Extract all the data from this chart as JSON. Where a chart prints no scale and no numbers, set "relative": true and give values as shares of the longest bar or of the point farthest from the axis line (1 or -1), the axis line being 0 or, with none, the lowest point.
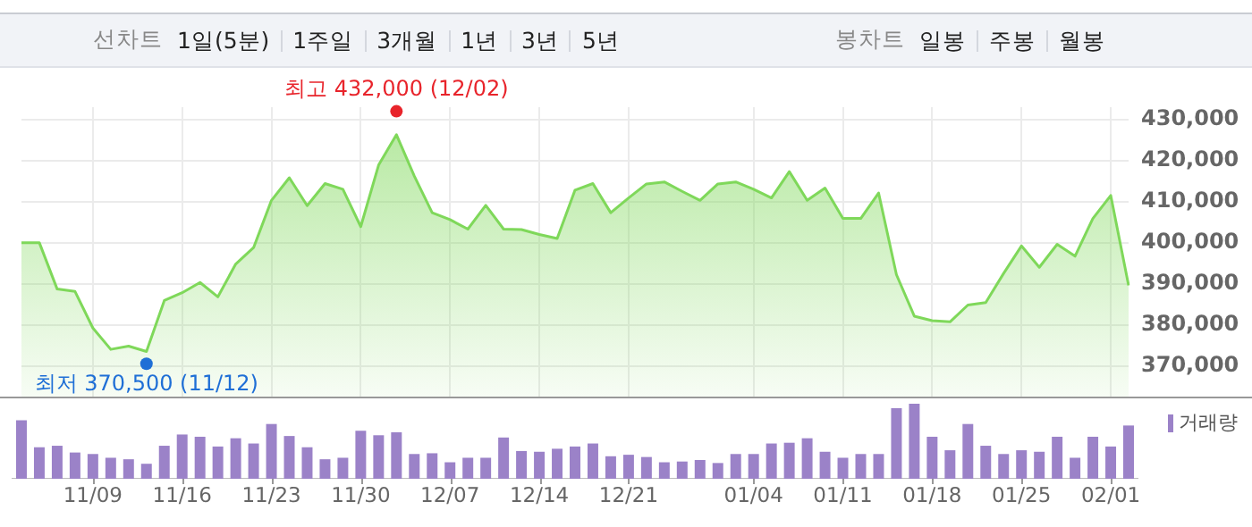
{
  "chart_data": [
    {
      "type": "other",
      "title": "선차트",
      "annotations": [
        "1일(5분)",
        "1주일",
        "3개월",
        "1년",
        "3년",
        "5년"
      ]
    },
    {
      "type": "other",
      "title": "봉차트",
      "annotations": [
        "일봉",
        "주봉",
        "월봉"
      ]
    },
    {
      "type": "area",
      "categories": [
        null,
        null,
        null,
        null,
        "11/09",
        null,
        null,
        null,
        null,
        "11/16",
        null,
        null,
        null,
        null,
        "11/23",
        null,
        null,
        null,
        null,
        "11/30",
        null,
        null,
        null,
        null,
        "12/07",
        null,
        null,
        null,
        null,
        "12/14",
        null,
        null,
        null,
        null,
        "12/21",
        null,
        null,
        null,
        null,
        null,
        null,
        "01/04",
        null,
        null,
        null,
        null,
        "01/11",
        null,
        null,
        null,
        null,
        "01/18",
        null,
        null,
        null,
        null,
        "01/25",
        null,
        null,
        null,
        null,
        "02/01",
        null
      ],
      "values": [
        400000,
        400000,
        388700,
        388100,
        379200,
        374000,
        374800,
        373500,
        385900,
        387800,
        390300,
        386800,
        394800,
        398800,
        410300,
        415800,
        409000,
        414400,
        413000,
        403900,
        418900,
        426300,
        416200,
        407300,
        405600,
        403300,
        409100,
        403300,
        403200,
        402000,
        401000,
        412800,
        414400,
        407300,
        410900,
        414300,
        414800,
        412500,
        410300,
        414300,
        414800,
        413000,
        410900,
        417300,
        410300,
        413300,
        405900,
        405900,
        412100,
        392200,
        382100,
        381000,
        380700,
        384800,
        385400,
        392500,
        399200,
        394000,
        399600,
        396700,
        405900,
        411500,
        389600
      ],
      "color": "#7fd85a",
      "ylim": [
        362500,
        433000
      ],
      "yticks": [
        {
          "value": 370000,
          "label": "370,000"
        },
        {
          "value": 380000,
          "label": "380,000"
        },
        {
          "value": 390000,
          "label": "390,000"
        },
        {
          "value": 400000,
          "label": "400,000"
        },
        {
          "value": 410000,
          "label": "410,000"
        },
        {
          "value": 420000,
          "label": "420,000"
        },
        {
          "value": 430000,
          "label": "430,000"
        }
      ],
      "grid": true,
      "annotations": [
        {
          "text": "최고 432,000 (12/02)",
          "y": 432000
        },
        {
          "text": "최저 370,500 (11/12)",
          "y": 370500
        }
      ]
    },
    {
      "type": "bar",
      "series": [
        {
          "name": "거래량",
          "color": "#9b82c8",
          "values": [
            0.78,
            0.42,
            0.44,
            0.35,
            0.33,
            0.28,
            0.26,
            0.2,
            0.44,
            0.59,
            0.56,
            0.43,
            0.54,
            0.47,
            0.73,
            0.57,
            0.42,
            0.26,
            0.28,
            0.64,
            0.58,
            0.62,
            0.33,
            0.34,
            0.22,
            0.28,
            0.28,
            0.55,
            0.37,
            0.36,
            0.4,
            0.43,
            0.47,
            0.3,
            0.32,
            0.29,
            0.22,
            0.23,
            0.25,
            0.21,
            0.33,
            0.33,
            0.47,
            0.48,
            0.54,
            0.36,
            0.28,
            0.33,
            0.33,
            0.94,
            1,
            0.56,
            0.38,
            0.73,
            0.44,
            0.33,
            0.38,
            0.36,
            0.56,
            0.28,
            0.56,
            0.43,
            0.71
          ]
        }
      ],
      "relative": true,
      "legend": "top right"
    }
  ]
}
